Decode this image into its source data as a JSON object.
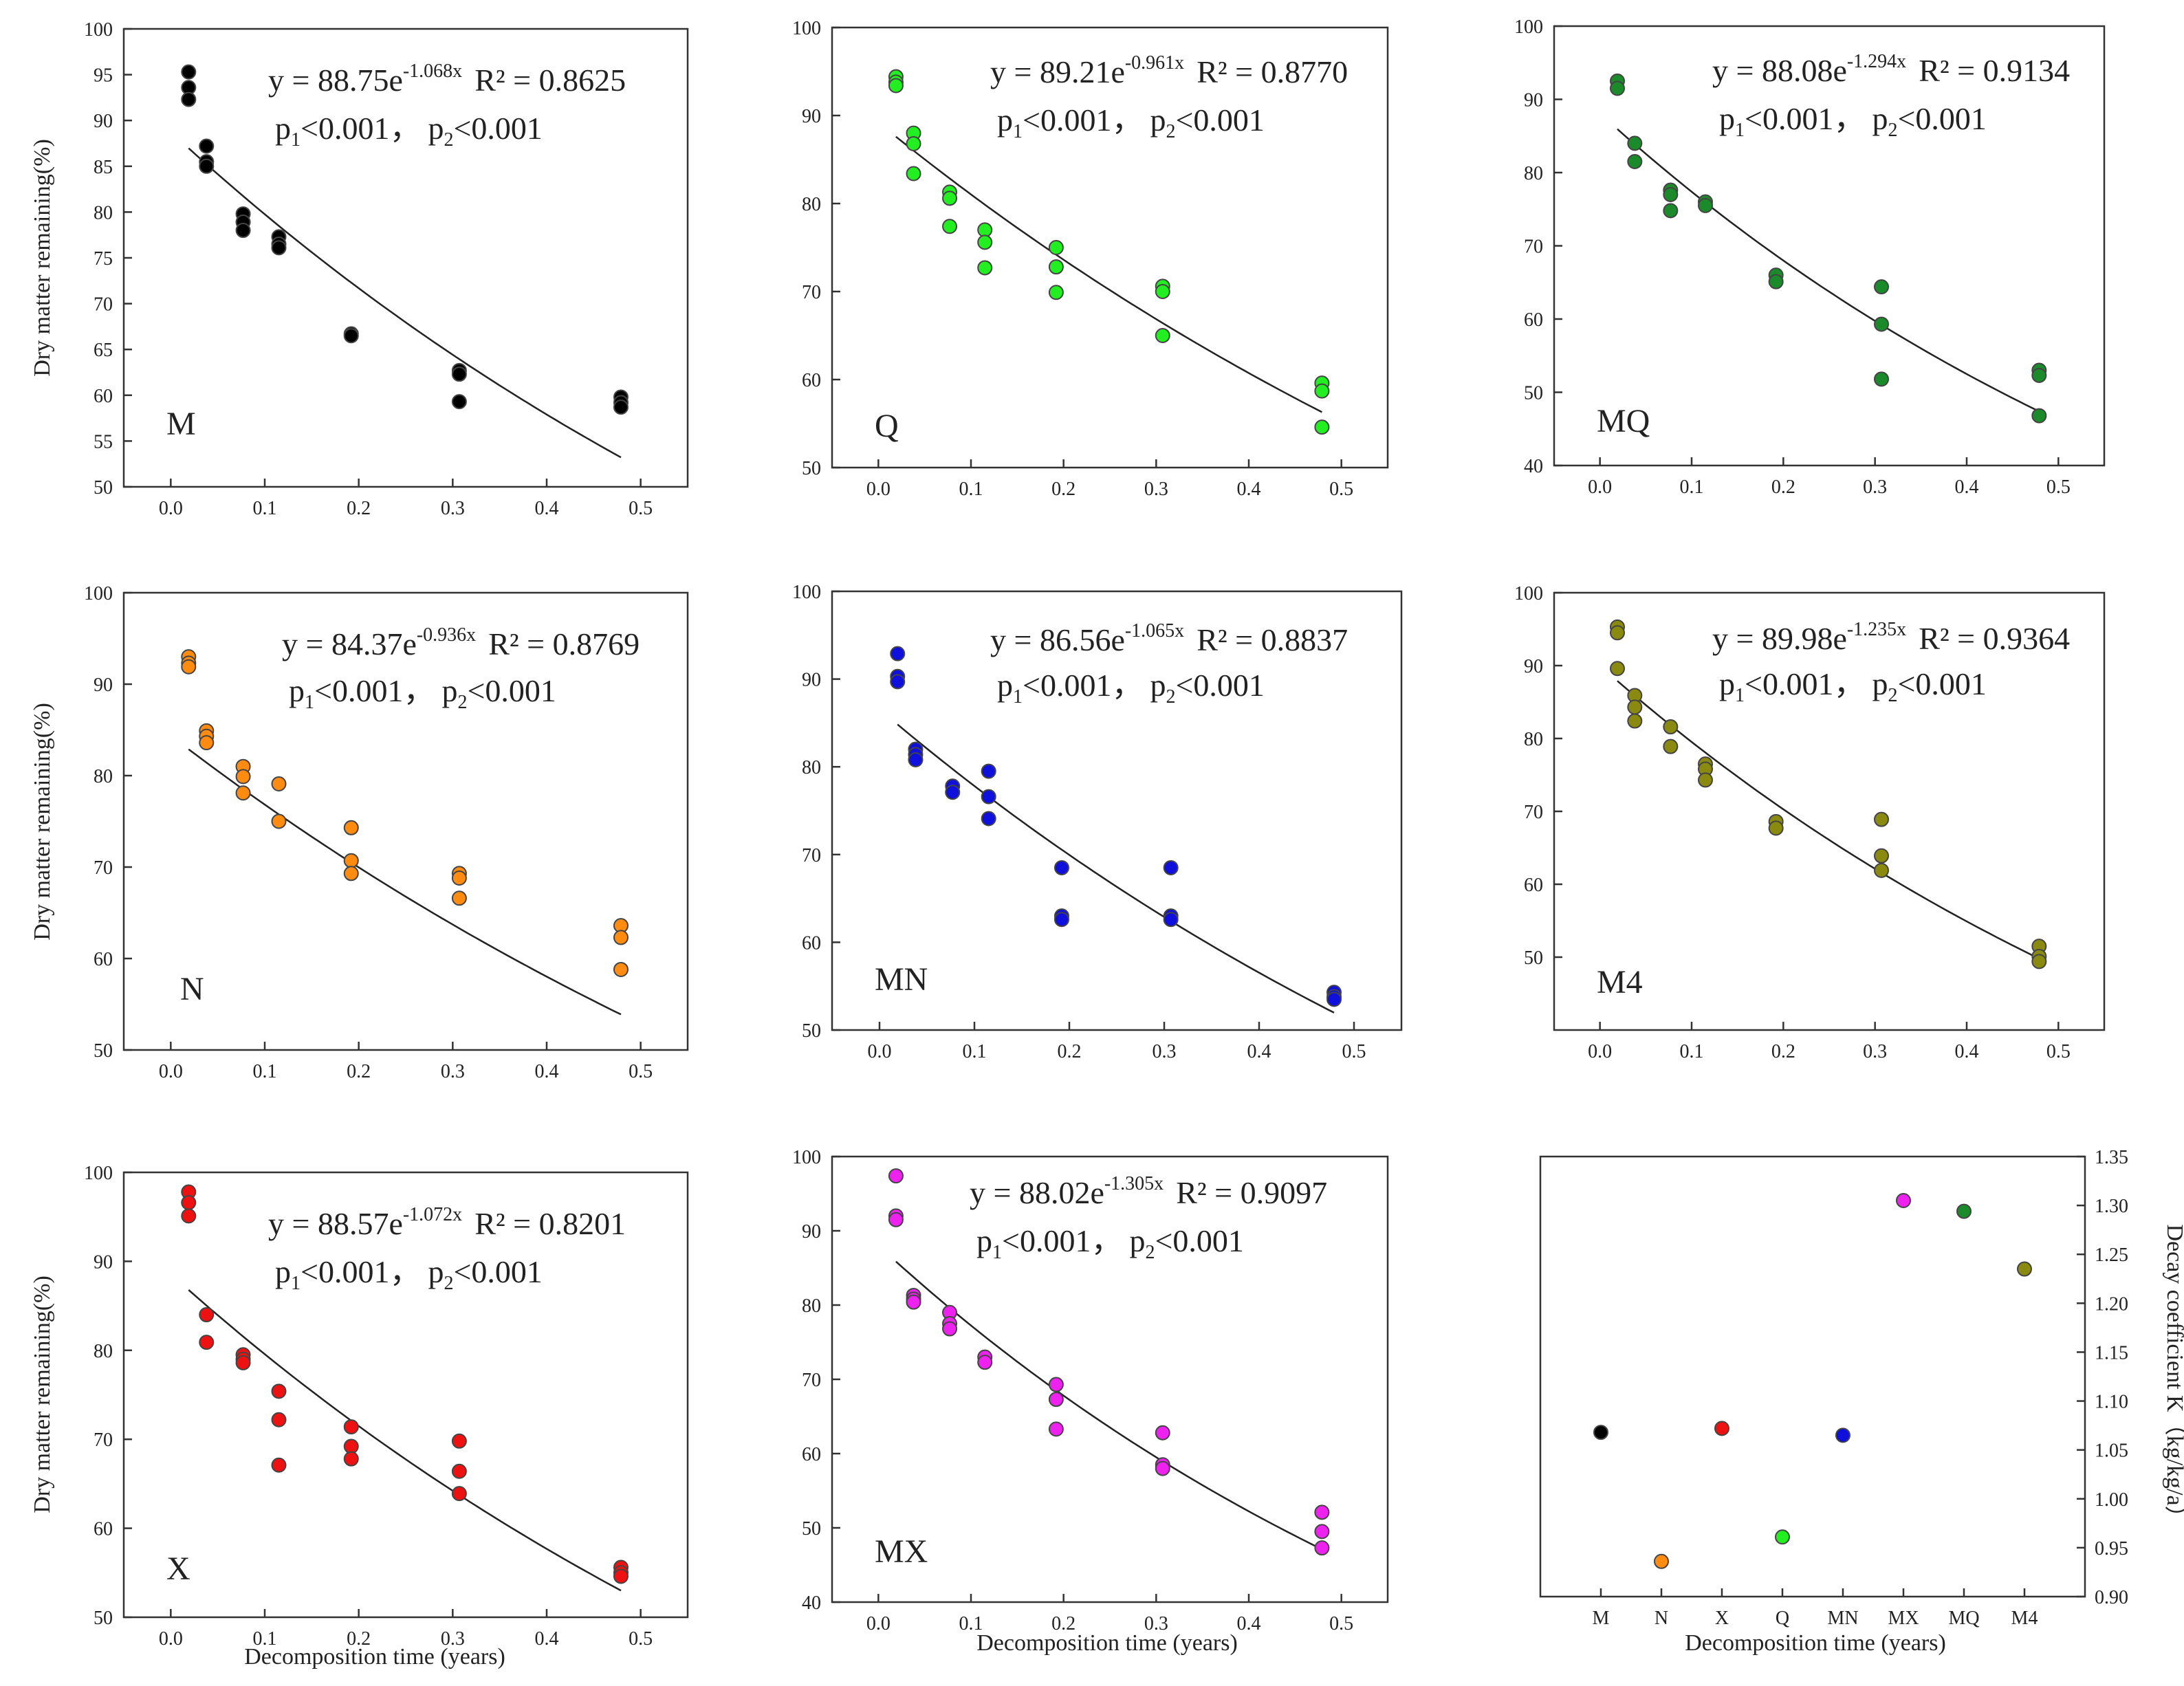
{
  "chart_data": {
    "type": "scatter",
    "x_axis_label": "Decomposition time (years)",
    "y_axis_label": "Dry matter remaining(%)",
    "k_axis_label": "Decay coefficient K（kg/kg/a）",
    "x_ticks": [
      "0.0",
      "0.1",
      "0.2",
      "0.3",
      "0.4",
      "0.5"
    ],
    "panels": [
      {
        "id": "M",
        "letter": "M",
        "color": "#000000",
        "equation": {
          "prefix": "y = 88.75e",
          "exponent": "-1.068x",
          "r2": "R² = 0.8625"
        },
        "stats": {
          "p": "p",
          "sub1": "1",
          "sub2": "2",
          "lt": "<0.001",
          "sep": "，"
        },
        "fit": {
          "a": 88.75,
          "b": -1.068
        },
        "ylim": [
          50,
          100
        ],
        "y_ticks": [
          50,
          55,
          60,
          65,
          70,
          75,
          80,
          85,
          90,
          95,
          100
        ],
        "x": [
          0.019,
          0.019,
          0.019,
          0.038,
          0.038,
          0.038,
          0.077,
          0.077,
          0.077,
          0.115,
          0.115,
          0.115,
          0.192,
          0.192,
          0.307,
          0.307,
          0.307,
          0.479,
          0.479,
          0.479
        ],
        "y": [
          95.3,
          93.6,
          92.3,
          87.2,
          85.5,
          85.0,
          79.8,
          78.9,
          78.0,
          77.3,
          76.5,
          76.1,
          66.7,
          66.5,
          62.7,
          62.3,
          59.3,
          59.8,
          59.2,
          58.7
        ]
      },
      {
        "id": "Q",
        "letter": "Q",
        "color": "#22ee22",
        "equation": {
          "prefix": "y = 89.21e",
          "exponent": "-0.961x",
          "r2": "R² = 0.8770"
        },
        "stats": {
          "p": "p",
          "sub1": "1",
          "sub2": "2",
          "lt": "<0.001",
          "sep": "，"
        },
        "fit": {
          "a": 89.21,
          "b": -0.961
        },
        "ylim": [
          50,
          100
        ],
        "y_ticks": [
          50,
          60,
          70,
          80,
          90,
          100
        ],
        "x": [
          0.019,
          0.019,
          0.019,
          0.038,
          0.038,
          0.038,
          0.077,
          0.077,
          0.077,
          0.115,
          0.115,
          0.115,
          0.192,
          0.192,
          0.192,
          0.307,
          0.307,
          0.307,
          0.479,
          0.479,
          0.479
        ],
        "y": [
          94.4,
          93.8,
          93.4,
          88.0,
          86.8,
          83.4,
          81.3,
          80.6,
          77.4,
          77.0,
          75.6,
          72.7,
          75.0,
          72.8,
          69.9,
          70.6,
          70.0,
          65.0,
          59.6,
          58.7,
          54.6
        ]
      },
      {
        "id": "MQ",
        "letter": "MQ",
        "color": "#1a8a2a",
        "equation": {
          "prefix": "y = 88.08e",
          "exponent": "-1.294x",
          "r2": "R² = 0.9134"
        },
        "stats": {
          "p": "p",
          "sub1": "1",
          "sub2": "2",
          "lt": "<0.001",
          "sep": "，"
        },
        "fit": {
          "a": 88.08,
          "b": -1.294
        },
        "ylim": [
          40,
          100
        ],
        "y_ticks": [
          40,
          50,
          60,
          70,
          80,
          90,
          100
        ],
        "x": [
          0.019,
          0.019,
          0.038,
          0.038,
          0.077,
          0.077,
          0.077,
          0.115,
          0.115,
          0.192,
          0.192,
          0.307,
          0.307,
          0.307,
          0.479,
          0.479,
          0.479
        ],
        "y": [
          92.5,
          91.5,
          84.0,
          81.5,
          77.6,
          77.0,
          74.8,
          76.0,
          75.5,
          66.0,
          65.1,
          64.4,
          59.3,
          51.8,
          53.0,
          52.3,
          46.8
        ]
      },
      {
        "id": "N",
        "letter": "N",
        "color": "#ff8c10",
        "equation": {
          "prefix": "y = 84.37e",
          "exponent": "-0.936x",
          "r2": "R² = 0.8769"
        },
        "stats": {
          "p": "p",
          "sub1": "1",
          "sub2": "2",
          "lt": "<0.001",
          "sep": "，"
        },
        "fit": {
          "a": 84.37,
          "b": -0.936
        },
        "ylim": [
          50,
          100
        ],
        "y_ticks": [
          50,
          60,
          70,
          80,
          90,
          100
        ],
        "x": [
          0.019,
          0.019,
          0.019,
          0.038,
          0.038,
          0.038,
          0.077,
          0.077,
          0.077,
          0.115,
          0.115,
          0.192,
          0.192,
          0.192,
          0.307,
          0.307,
          0.307,
          0.479,
          0.479,
          0.479
        ],
        "y": [
          93.0,
          92.3,
          91.9,
          84.9,
          84.3,
          83.6,
          81.0,
          79.9,
          78.1,
          79.1,
          75.0,
          74.3,
          70.7,
          69.3,
          69.3,
          68.8,
          66.6,
          63.6,
          62.3,
          58.8
        ]
      },
      {
        "id": "MN",
        "letter": "MN",
        "color": "#1010dd",
        "equation": {
          "prefix": "y = 86.56e",
          "exponent": "-1.065x",
          "r2": "R² = 0.8837"
        },
        "stats": {
          "p": "p",
          "sub1": "1",
          "sub2": "2",
          "lt": "<0.001",
          "sep": "，"
        },
        "fit": {
          "a": 86.56,
          "b": -1.065
        },
        "ylim": [
          50,
          100
        ],
        "y_ticks": [
          50,
          60,
          70,
          80,
          90,
          100
        ],
        "x": [
          0.019,
          0.019,
          0.019,
          0.038,
          0.038,
          0.038,
          0.077,
          0.077,
          0.115,
          0.115,
          0.115,
          0.192,
          0.192,
          0.192,
          0.307,
          0.307,
          0.307,
          0.479,
          0.479,
          0.479
        ],
        "y": [
          92.9,
          90.3,
          89.7,
          82.0,
          81.4,
          80.8,
          77.8,
          77.1,
          79.5,
          76.6,
          74.1,
          68.5,
          63.0,
          62.6,
          68.5,
          63.0,
          62.6,
          54.3,
          53.8,
          53.5
        ]
      },
      {
        "id": "M4",
        "letter": "M4",
        "color": "#8a8a10",
        "equation": {
          "prefix": "y = 89.98e",
          "exponent": "-1.235x",
          "r2": "R² = 0.9364"
        },
        "stats": {
          "p": "p",
          "sub1": "1",
          "sub2": "2",
          "lt": "<0.001",
          "sep": "，"
        },
        "fit": {
          "a": 89.98,
          "b": -1.235
        },
        "ylim": [
          40,
          100
        ],
        "y_ticks": [
          50,
          60,
          70,
          80,
          90,
          100
        ],
        "x": [
          0.019,
          0.019,
          0.019,
          0.038,
          0.038,
          0.038,
          0.077,
          0.077,
          0.115,
          0.115,
          0.115,
          0.192,
          0.192,
          0.307,
          0.307,
          0.307,
          0.479,
          0.479,
          0.479
        ],
        "y": [
          95.3,
          94.5,
          89.6,
          85.9,
          84.3,
          82.4,
          81.6,
          78.9,
          76.5,
          75.8,
          74.3,
          68.6,
          67.7,
          68.9,
          63.9,
          61.9,
          51.5,
          50.1,
          49.4
        ]
      },
      {
        "id": "X",
        "letter": "X",
        "color": "#ee1111",
        "equation": {
          "prefix": "y = 88.57e",
          "exponent": "-1.072x",
          "r2": "R² = 0.8201"
        },
        "stats": {
          "p": "p",
          "sub1": "1",
          "sub2": "2",
          "lt": "<0.001",
          "sep": "，"
        },
        "fit": {
          "a": 88.57,
          "b": -1.072
        },
        "ylim": [
          50,
          100
        ],
        "y_ticks": [
          50,
          60,
          70,
          80,
          90,
          100
        ],
        "x": [
          0.019,
          0.019,
          0.019,
          0.038,
          0.038,
          0.077,
          0.077,
          0.077,
          0.115,
          0.115,
          0.115,
          0.192,
          0.192,
          0.192,
          0.307,
          0.307,
          0.307,
          0.479,
          0.479,
          0.479
        ],
        "y": [
          97.8,
          96.6,
          95.1,
          84.0,
          80.9,
          79.5,
          79.0,
          78.6,
          75.4,
          72.2,
          67.1,
          71.4,
          69.2,
          67.8,
          69.8,
          66.4,
          63.9,
          55.6,
          55.0,
          54.6
        ]
      },
      {
        "id": "MX",
        "letter": "MX",
        "color": "#ee22ee",
        "equation": {
          "prefix": "y = 88.02e",
          "exponent": "-1.305x",
          "r2": "R² = 0.9097"
        },
        "stats": {
          "p": "p",
          "sub1": "1",
          "sub2": "2",
          "lt": "<0.001",
          "sep": "，"
        },
        "fit": {
          "a": 88.02,
          "b": -1.305
        },
        "ylim": [
          40,
          100
        ],
        "y_ticks": [
          40,
          50,
          60,
          70,
          80,
          90,
          100
        ],
        "x": [
          0.019,
          0.019,
          0.019,
          0.038,
          0.038,
          0.038,
          0.077,
          0.077,
          0.077,
          0.115,
          0.115,
          0.192,
          0.192,
          0.192,
          0.307,
          0.307,
          0.307,
          0.479,
          0.479,
          0.479
        ],
        "y": [
          97.4,
          92.0,
          91.5,
          81.3,
          80.8,
          80.4,
          79.0,
          77.5,
          76.8,
          73.0,
          72.3,
          69.3,
          67.3,
          63.3,
          62.8,
          58.5,
          58.0,
          52.1,
          49.5,
          47.3
        ]
      }
    ],
    "decay_panel": {
      "type": "scatter",
      "categories": [
        "M",
        "N",
        "X",
        "Q",
        "MN",
        "MX",
        "MQ",
        "M4"
      ],
      "values": [
        1.068,
        0.936,
        1.072,
        0.961,
        1.065,
        1.305,
        1.294,
        1.235
      ],
      "colors": [
        "#000000",
        "#ff8c10",
        "#ee1111",
        "#22ee22",
        "#1010dd",
        "#ee22ee",
        "#1a8a2a",
        "#8a8a10"
      ],
      "ylim": [
        0.9,
        1.35
      ],
      "y_ticks": [
        "0.90",
        "0.95",
        "1.00",
        "1.05",
        "1.10",
        "1.15",
        "1.20",
        "1.25",
        "1.30",
        "1.35"
      ]
    }
  }
}
